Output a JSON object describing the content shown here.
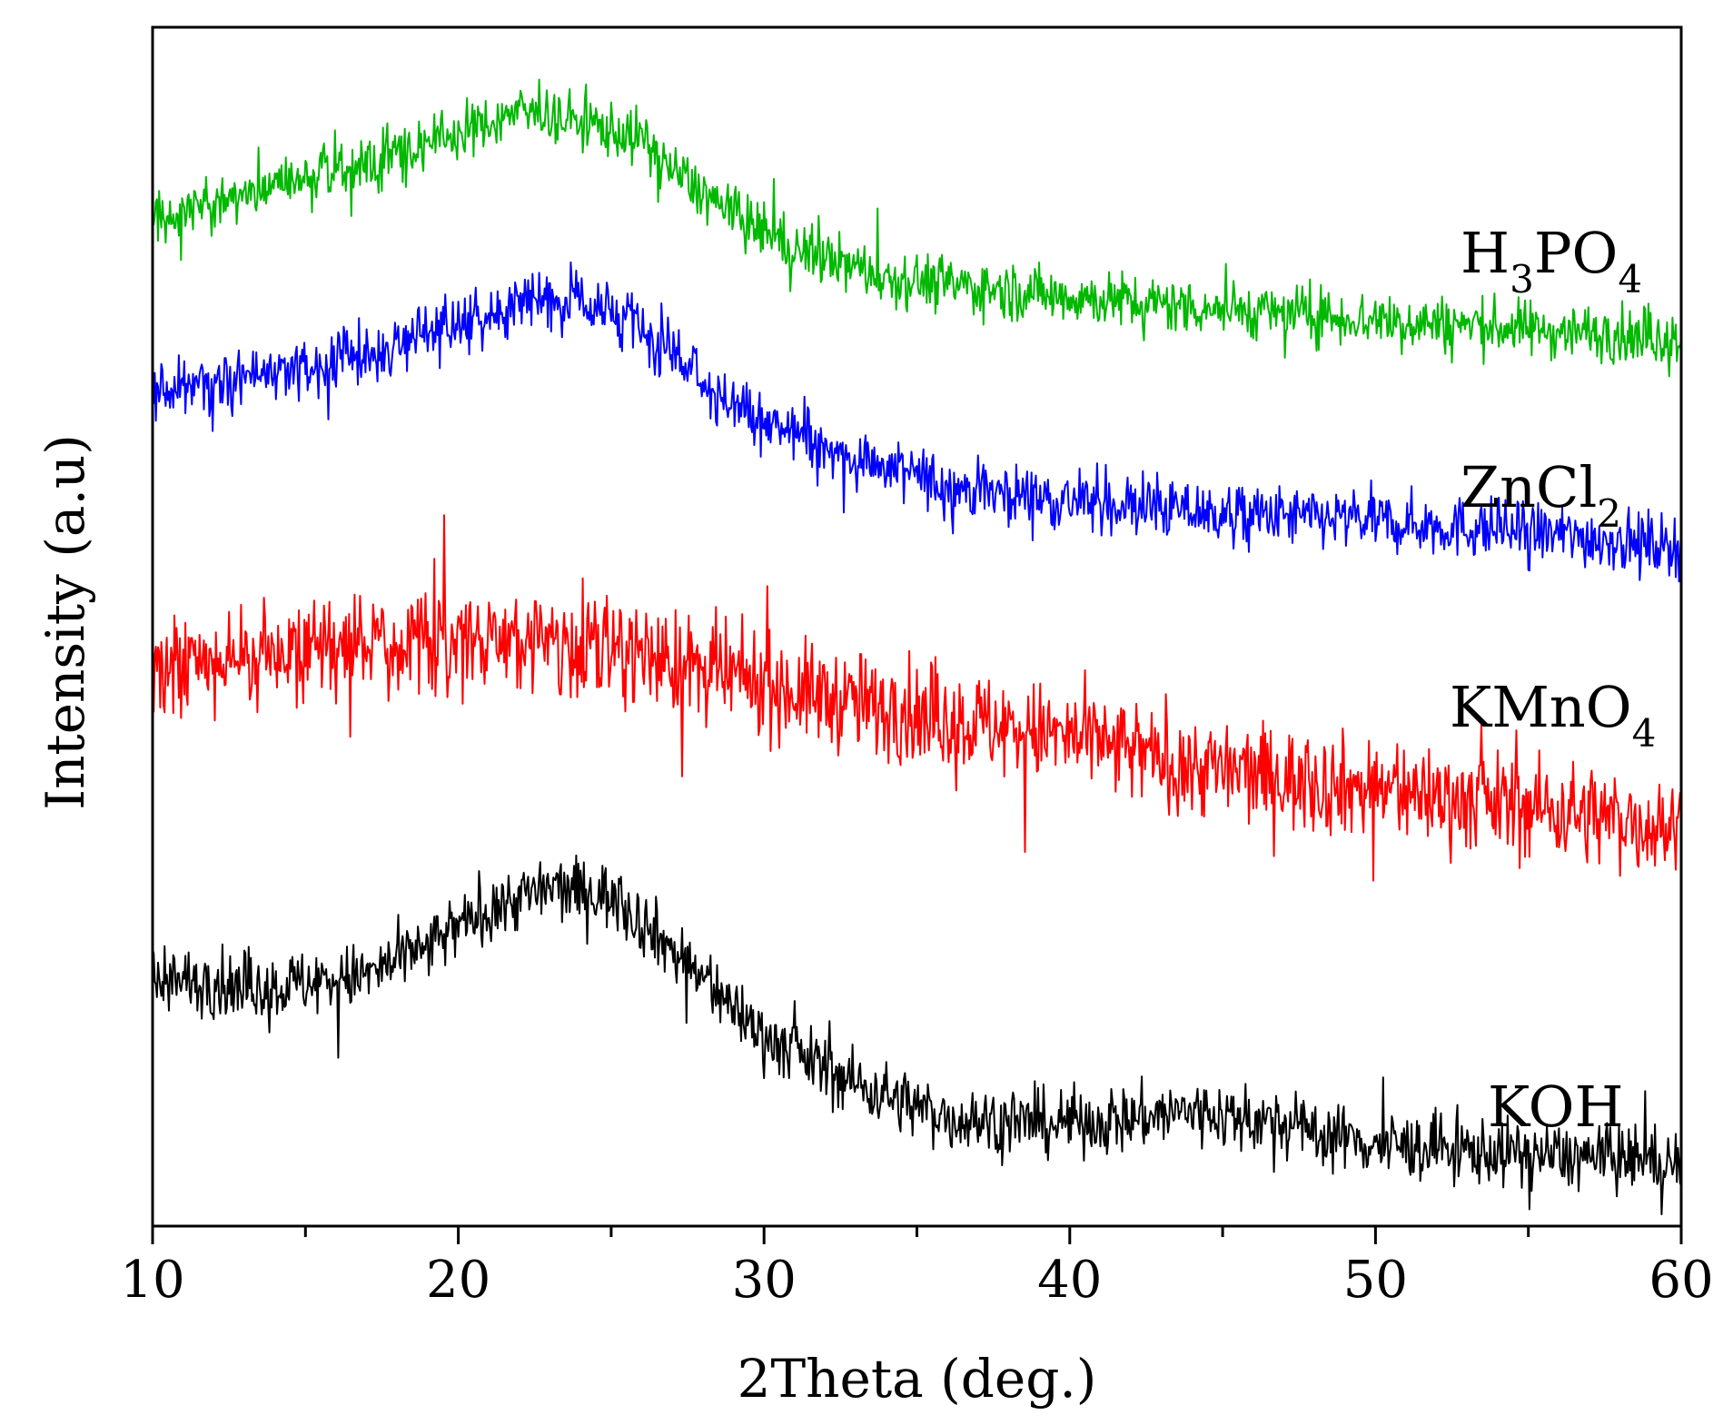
{
  "chart_data": {
    "type": "line",
    "title": "",
    "xlabel": "2Theta (deg.)",
    "ylabel": "Intensity (a.u)",
    "xlim": [
      10,
      60
    ],
    "ylim": [
      0,
      100
    ],
    "xticks": [
      "10",
      "20",
      "30",
      "40",
      "50",
      "60"
    ],
    "yticks_labeled": false,
    "grid": false,
    "legend": "inline-right",
    "series": [
      {
        "name": "H3PO4",
        "label_main": "H",
        "label_parts": [
          {
            "text": "H",
            "sub": false
          },
          {
            "text": "3",
            "sub": true
          },
          {
            "text": "PO",
            "sub": false
          },
          {
            "text": "4",
            "sub": true
          }
        ],
        "color": "#00b800",
        "noise": 2.2,
        "profile": [
          [
            10,
            84.0
          ],
          [
            14,
            86.7
          ],
          [
            17,
            88.6
          ],
          [
            20,
            91.1
          ],
          [
            22,
            93.0
          ],
          [
            24,
            92.2
          ],
          [
            26,
            90.7
          ],
          [
            27,
            88.1
          ],
          [
            29,
            84.3
          ],
          [
            31,
            81.5
          ],
          [
            34,
            79.2
          ],
          [
            38,
            78.0
          ],
          [
            44,
            76.7
          ],
          [
            50,
            75.6
          ],
          [
            60,
            74.1
          ]
        ]
      },
      {
        "name": "ZnCl2",
        "label_parts": [
          {
            "text": "ZnCl",
            "sub": false
          },
          {
            "text": "2",
            "sub": true
          }
        ],
        "color": "#0000ff",
        "noise": 2.4,
        "profile": [
          [
            10,
            69.5
          ],
          [
            14,
            71.2
          ],
          [
            17,
            72.8
          ],
          [
            20,
            75.3
          ],
          [
            22,
            77.4
          ],
          [
            24,
            77.3
          ],
          [
            26,
            74.6
          ],
          [
            28,
            70.4
          ],
          [
            30,
            66.9
          ],
          [
            33,
            64.0
          ],
          [
            36,
            61.8
          ],
          [
            40,
            60.5
          ],
          [
            45,
            59.4
          ],
          [
            50,
            58.8
          ],
          [
            55,
            57.9
          ],
          [
            60,
            56.7
          ]
        ]
      },
      {
        "name": "KMnO4",
        "label_parts": [
          {
            "text": "KMnO",
            "sub": false
          },
          {
            "text": "4",
            "sub": true
          }
        ],
        "color": "#ff0000",
        "noise": 4.0,
        "profile": [
          [
            10,
            45.8
          ],
          [
            14,
            48.2
          ],
          [
            18,
            48.9
          ],
          [
            22,
            48.9
          ],
          [
            25,
            48.5
          ],
          [
            28,
            46.2
          ],
          [
            32,
            44.1
          ],
          [
            36,
            42.4
          ],
          [
            40,
            40.7
          ],
          [
            44,
            38.4
          ],
          [
            48,
            37.0
          ],
          [
            52,
            35.9
          ],
          [
            56,
            34.7
          ],
          [
            60,
            33.1
          ]
        ]
      },
      {
        "name": "KOH",
        "label_parts": [
          {
            "text": "KOH",
            "sub": false
          }
        ],
        "color": "#000000",
        "noise": 2.6,
        "profile": [
          [
            10,
            20.5
          ],
          [
            14,
            20.0
          ],
          [
            17,
            20.9
          ],
          [
            19,
            23.2
          ],
          [
            21,
            26.6
          ],
          [
            23,
            28.2
          ],
          [
            25,
            27.6
          ],
          [
            26.5,
            24.3
          ],
          [
            28,
            20.6
          ],
          [
            30,
            15.9
          ],
          [
            33,
            11.9
          ],
          [
            36,
            9.0
          ],
          [
            39,
            8.5
          ],
          [
            42,
            9.0
          ],
          [
            44,
            9.6
          ],
          [
            46,
            8.9
          ],
          [
            48,
            7.9
          ],
          [
            50,
            6.8
          ],
          [
            55,
            6.0
          ],
          [
            60,
            5.3
          ]
        ]
      }
    ]
  }
}
